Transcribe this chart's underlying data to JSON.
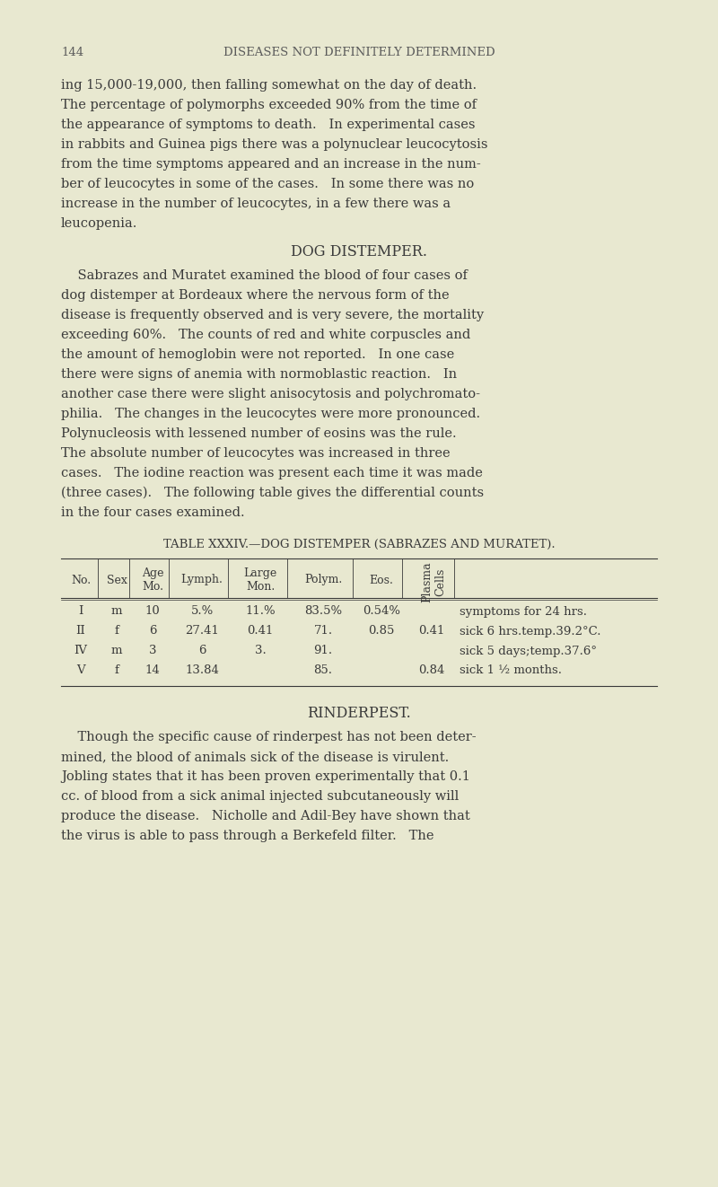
{
  "background_color": "#e8e8d0",
  "page_number": "144",
  "page_header": "DISEASES NOT DEFINITELY DETERMINED",
  "paragraph1": "ing 15,000-19,000, then falling somewhat on the day of death.\nThe percentage of polymorphs exceeded 90% from the time of\nthe appearance of symptoms to death.   In experimental cases\nin rabbits and Guinea pigs there was a polynuclear leucocytosis\nfrom the time symptoms appeared and an increase in the num-\nber of leucocytes in some of the cases.   In some there was no\nincrease in the number of leucocytes, in a few there was a\nleucopenia.",
  "section_heading1": "DOG DISTEMPER.",
  "paragraph2": "    Sabrazes and Muratet examined the blood of four cases of\ndog distemper at Bordeaux where the nervous form of the\ndisease is frequently observed and is very severe, the mortality\nexceeding 60%.   The counts of red and white corpuscles and\nthe amount of hemoglobin were not reported.   In one case\nthere were signs of anemia with normoblastic reaction.   In\nanother case there were slight anisocytosis and polychromato-\nphilia.   The changes in the leucocytes were more pronounced.\nPolynucleosis with lessened number of eosins was the rule.\nThe absolute number of leucocytes was increased in three\ncases.   The iodine reaction was present each time it was made\n(three cases).   The following table gives the differential counts\nin the four cases examined.",
  "table_caption": "TABLE XXXIV.—DOG DISTEMPER (SABRAZES AND MURATET).",
  "table_headers": [
    "No.",
    "Sex",
    "Age\nMo.",
    "Lymph.",
    "Large\nMon.",
    "Polym.",
    "Eos.",
    "Plasma\nCells",
    ""
  ],
  "table_rows": [
    [
      "I",
      "m",
      "10",
      "5.%",
      "11.%",
      "83.5%",
      "0.54%",
      "",
      "symptoms for 24 hrs."
    ],
    [
      "II",
      "f",
      "6",
      "27.41",
      "0.41",
      "71.",
      "0.85",
      "0.41",
      "sick 6 hrs.temp.39.2°C."
    ],
    [
      "IV",
      "m",
      "3",
      "6",
      "3.",
      "91.",
      "",
      "",
      "sick 5 days;temp.37.6°"
    ],
    [
      "V",
      "f",
      "14",
      "13.84",
      "",
      "85.",
      "",
      "0.84",
      "sick 1 ½ months."
    ]
  ],
  "section_heading2": "RINDERPEST.",
  "paragraph3": "    Though the specific cause of rinderpest has not been deter-\nmined, the blood of animals sick of the disease is virulent.\nJobling states that it has been proven experimentally that 0.1\ncc. of blood from a sick animal injected subcutaneously will\nproduce the disease.   Nicholle and Adil-Bey have shown that\nthe virus is able to pass through a Berkefeld filter.   The",
  "text_color": "#3a3a3a",
  "header_color": "#5a5a5a",
  "font_size_body": 10.5,
  "font_size_header": 9.5,
  "font_size_section": 11.5,
  "font_size_table": 9.5
}
